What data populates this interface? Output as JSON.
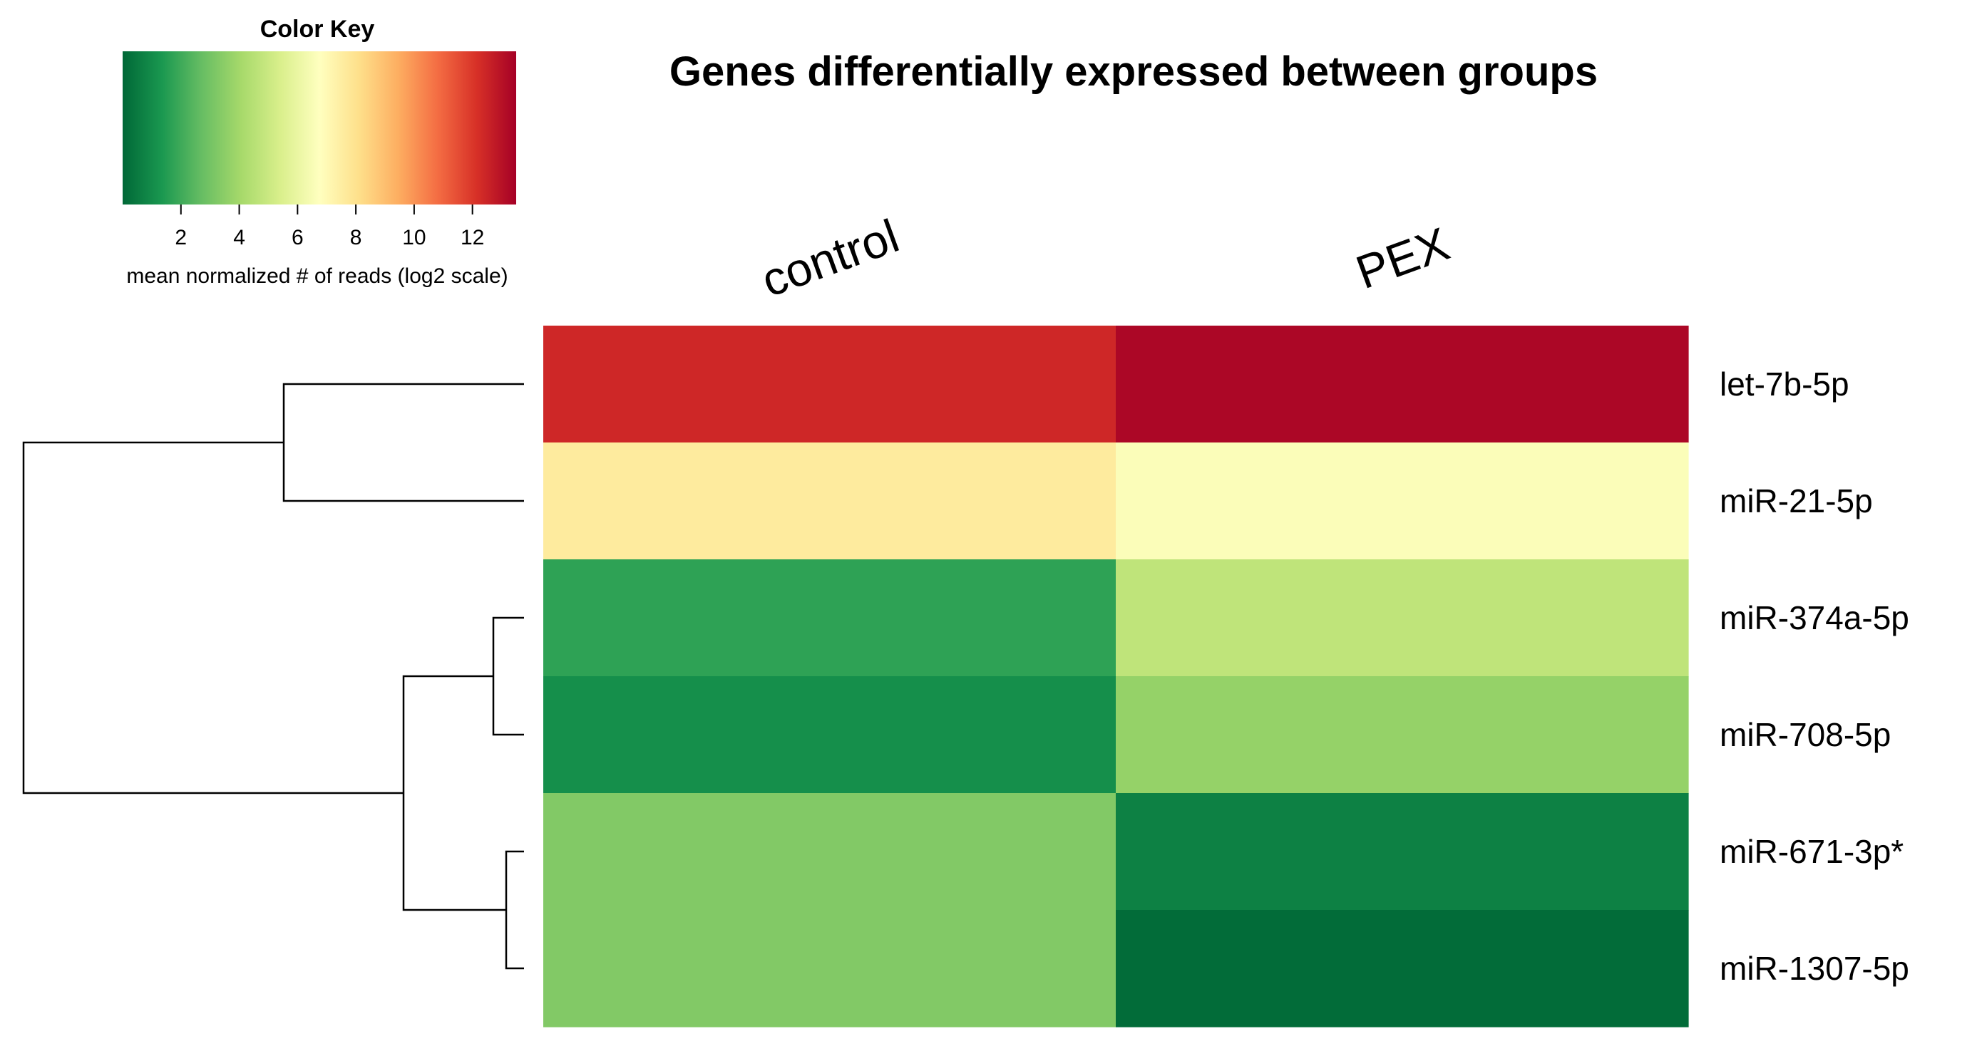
{
  "chart_data": {
    "type": "heatmap",
    "title": "Genes differentially expressed between groups",
    "columns": [
      "control",
      "PEX"
    ],
    "rows": [
      "let-7b-5p",
      "miR-21-5p",
      "miR-374a-5p",
      "miR-708-5p",
      "miR-671-3p*",
      "miR-1307-5p"
    ],
    "values": [
      [
        12.4,
        13.3
      ],
      [
        7.6,
        6.6
      ],
      [
        1.7,
        4.7
      ],
      [
        1.1,
        3.7
      ],
      [
        3.3,
        0.7
      ],
      [
        3.3,
        0.1
      ]
    ],
    "color_scale": {
      "min": 0,
      "max": 13.5,
      "stops": [
        "#006837",
        "#1a9850",
        "#66bd63",
        "#a6d96a",
        "#d9ef8b",
        "#ffffbf",
        "#fee08b",
        "#fdae61",
        "#f46d43",
        "#d73027",
        "#a50026"
      ]
    },
    "color_key": {
      "title": "Color Key",
      "ticks": [
        "2",
        "4",
        "6",
        "8",
        "10",
        "12"
      ],
      "tick_values": [
        2,
        4,
        6,
        8,
        10,
        12
      ],
      "xlabel": "mean normalized # of reads (log2 scale)"
    },
    "row_dendrogram": {
      "merges": [
        [
          "let-7b-5p",
          "miR-21-5p"
        ],
        [
          "miR-374a-5p",
          "miR-708-5p"
        ],
        [
          "miR-671-3p*",
          "miR-1307-5p"
        ]
      ]
    }
  }
}
